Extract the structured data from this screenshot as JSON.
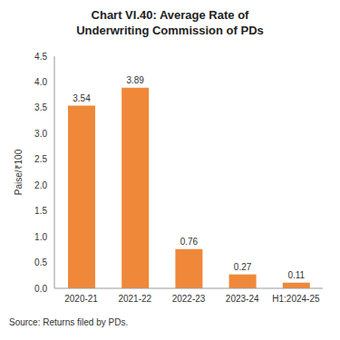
{
  "chart_data": {
    "type": "bar",
    "title": "Chart VI.40: Average Rate of Underwriting Commission of PDs",
    "y_label": "Paise/₹100",
    "source": "Source: Returns filed by PDs.",
    "categories": [
      "2020-21",
      "2021-22",
      "2022-23",
      "2023-24",
      "H1:2024-25"
    ],
    "values": [
      3.54,
      3.89,
      0.76,
      0.27,
      0.11
    ],
    "color": "#f0883a",
    "ylim": [
      0,
      4.5
    ],
    "yticks": [
      {
        "value": 0,
        "label": "0.0"
      },
      {
        "value": 0.5,
        "label": "0.5"
      },
      {
        "value": 1,
        "label": "1.0"
      },
      {
        "value": 1.5,
        "label": "1.5"
      },
      {
        "value": 2,
        "label": "2.0"
      },
      {
        "value": 2.5,
        "label": "2.5"
      },
      {
        "value": 3,
        "label": "3.0"
      },
      {
        "value": 3.5,
        "label": "3.5"
      },
      {
        "value": 4,
        "label": "4.0"
      },
      {
        "value": 4.5,
        "label": "4.5"
      }
    ],
    "grid": false,
    "data_labels": true
  }
}
